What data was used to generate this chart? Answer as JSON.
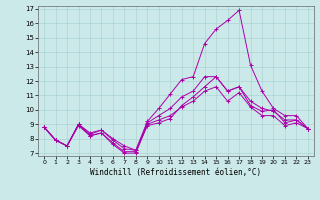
{
  "xlabel": "Windchill (Refroidissement éolien,°C)",
  "xlim": [
    -0.5,
    23.5
  ],
  "ylim": [
    6.8,
    17.2
  ],
  "yticks": [
    7,
    8,
    9,
    10,
    11,
    12,
    13,
    14,
    15,
    16,
    17
  ],
  "xticks": [
    0,
    1,
    2,
    3,
    4,
    5,
    6,
    7,
    8,
    9,
    10,
    11,
    12,
    13,
    14,
    15,
    16,
    17,
    18,
    19,
    20,
    21,
    22,
    23
  ],
  "bg_color": "#cce9e9",
  "grid_color": "#aad4d4",
  "line_color": "#aa00aa",
  "lines": [
    [
      8.8,
      7.9,
      7.5,
      9.0,
      8.2,
      8.4,
      7.6,
      7.0,
      7.0,
      9.0,
      9.3,
      9.6,
      10.2,
      10.6,
      11.3,
      11.6,
      10.6,
      11.2,
      10.2,
      9.6,
      9.6,
      8.9,
      9.1,
      8.7
    ],
    [
      8.8,
      7.9,
      7.5,
      8.9,
      8.2,
      8.4,
      7.7,
      7.1,
      7.1,
      8.9,
      9.1,
      9.4,
      10.3,
      10.9,
      11.6,
      12.3,
      11.3,
      11.6,
      10.3,
      9.9,
      10.0,
      9.1,
      9.3,
      8.7
    ],
    [
      8.8,
      7.9,
      7.5,
      9.0,
      8.3,
      8.6,
      8.0,
      7.5,
      7.2,
      9.2,
      10.1,
      11.1,
      12.1,
      12.3,
      14.6,
      15.6,
      16.2,
      16.9,
      13.1,
      11.3,
      10.1,
      9.6,
      9.6,
      8.7
    ],
    [
      8.8,
      7.9,
      7.5,
      9.0,
      8.4,
      8.6,
      7.9,
      7.3,
      7.2,
      9.1,
      9.6,
      10.1,
      10.9,
      11.3,
      12.3,
      12.3,
      11.3,
      11.6,
      10.6,
      10.1,
      9.9,
      9.3,
      9.3,
      8.7
    ]
  ]
}
